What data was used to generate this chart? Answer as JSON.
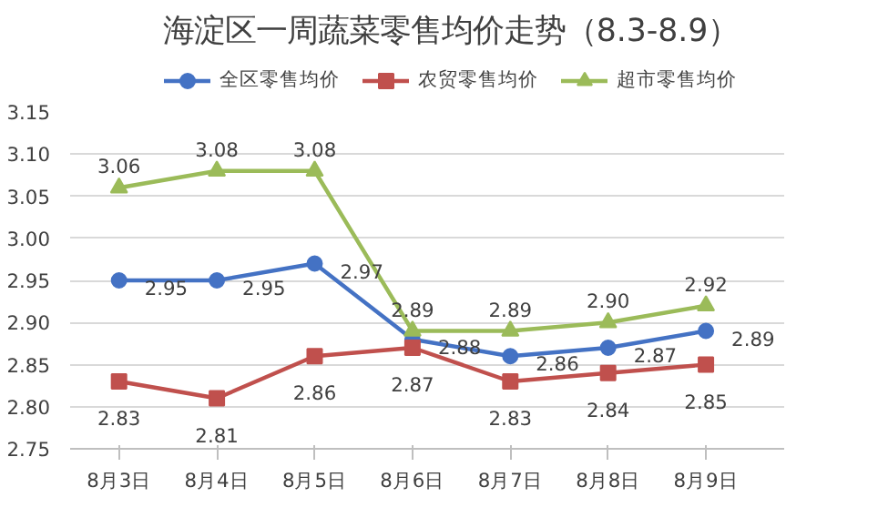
{
  "chart_data": {
    "type": "line",
    "title": "海淀区一周蔬菜零售均价走势（8.3-8.9）",
    "categories": [
      "8月3日",
      "8月4日",
      "8月5日",
      "8月6日",
      "8月7日",
      "8月8日",
      "8月9日"
    ],
    "series": [
      {
        "name": "全区零售均价",
        "color": "#4472c4",
        "marker": "circle",
        "values": [
          2.95,
          2.95,
          2.97,
          2.88,
          2.86,
          2.87,
          2.89
        ],
        "value_labels": [
          "2.95",
          "2.95",
          "2.97",
          "2.88",
          "2.86",
          "2.87",
          "2.89"
        ]
      },
      {
        "name": "农贸零售均价",
        "color": "#c0504d",
        "marker": "square",
        "values": [
          2.83,
          2.81,
          2.86,
          2.87,
          2.83,
          2.84,
          2.85
        ],
        "value_labels": [
          "2.83",
          "2.81",
          "2.86",
          "2.87",
          "2.83",
          "2.84",
          "2.85"
        ]
      },
      {
        "name": "超市零售均价",
        "color": "#9bbb59",
        "marker": "triangle",
        "values": [
          3.06,
          3.08,
          3.08,
          2.89,
          2.89,
          2.9,
          2.92
        ],
        "value_labels": [
          "3.06",
          "3.08",
          "3.08",
          "2.89",
          "2.89",
          "2.90",
          "2.92"
        ]
      }
    ],
    "ylim": [
      2.75,
      3.15
    ],
    "yticks": [
      2.75,
      {
        "value": 2.8,
        "label": "2.80"
      },
      2.85,
      {
        "value": 2.9,
        "label": "2.90"
      },
      2.95,
      {
        "value": 3.0,
        "label": "3.00"
      },
      3.05,
      {
        "value": 3.1,
        "label": "3.10"
      },
      3.15
    ],
    "grid": "y",
    "legend": "top"
  }
}
